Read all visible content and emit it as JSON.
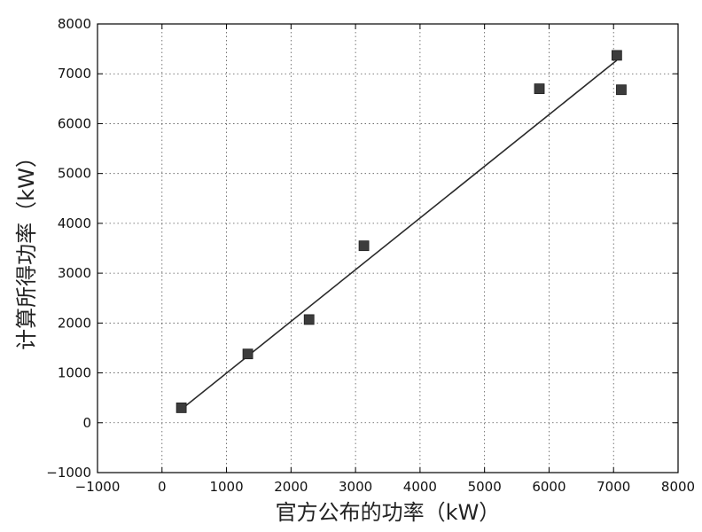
{
  "chart_data": {
    "type": "scatter",
    "xlabel": "官方公布的功率（kW）",
    "ylabel": "计算所得功率（kW）",
    "xlim": [
      -1000,
      8000
    ],
    "ylim": [
      -1000,
      8000
    ],
    "x_ticks": [
      "−1000",
      "0",
      "1000",
      "2000",
      "3000",
      "4000",
      "5000",
      "6000",
      "7000",
      "8000"
    ],
    "y_ticks": [
      "−1000",
      "0",
      "1000",
      "2000",
      "3000",
      "4000",
      "5000",
      "6000",
      "7000",
      "8000"
    ],
    "grid": true,
    "series": [
      {
        "kind": "scatter",
        "marker": "square",
        "color": "#3c3c3c",
        "points": [
          {
            "x": 300,
            "y": 300
          },
          {
            "x": 1330,
            "y": 1380
          },
          {
            "x": 2280,
            "y": 2070
          },
          {
            "x": 3130,
            "y": 3550
          },
          {
            "x": 5850,
            "y": 6700
          },
          {
            "x": 7050,
            "y": 7370
          },
          {
            "x": 7120,
            "y": 6680
          }
        ]
      },
      {
        "kind": "line",
        "color": "#2a2a2a",
        "points": [
          {
            "x": 300,
            "y": 270
          },
          {
            "x": 7050,
            "y": 7270
          }
        ]
      }
    ]
  }
}
